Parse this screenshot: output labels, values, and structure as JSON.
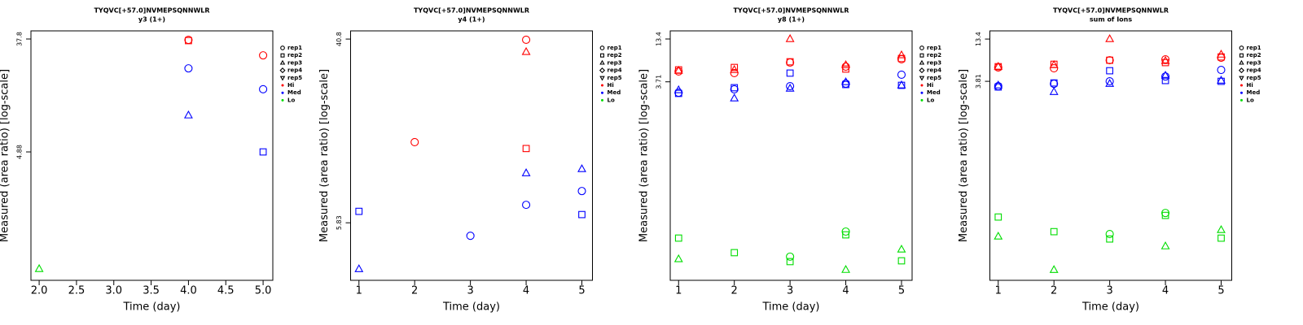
{
  "chart_data": [
    {
      "type": "scatter",
      "title": "TYQVC[+57.0]NVMEPSQNNWLR",
      "subtitle": "y3 (1+)",
      "x_label": "Time (day)",
      "y_label": "Measured (area ratio) [log-scale]",
      "log_y": true,
      "xlim": [
        1.89,
        5.13
      ],
      "ylim": [
        0.476,
        43.8
      ],
      "xticks": [
        {
          "value": 2,
          "label": "2.0"
        },
        2.5,
        {
          "value": 3,
          "label": "3.0"
        },
        3.5,
        {
          "value": 4,
          "label": "4.0"
        },
        4.5,
        {
          "value": 5,
          "label": "5.0"
        }
      ],
      "yticks": [
        37.8,
        4.88
      ],
      "rep_names": [
        "rep1",
        "rep2",
        "rep3",
        "rep4",
        "rep5"
      ],
      "rep_shapes": [
        "circle",
        "square",
        "triangle",
        "diamond",
        "triangle-down"
      ],
      "series": [
        {
          "name": "Hi",
          "color": "#ff0000",
          "reps": [
            {
              "x": [
                4,
                5
              ],
              "values": [
                37.2,
                28.1
              ]
            },
            {
              "x": [
                4
              ],
              "values": [
                36.7
              ]
            },
            {
              "x": [],
              "values": []
            }
          ]
        },
        {
          "name": "Med",
          "color": "#0000ff",
          "reps": [
            {
              "x": [
                4,
                5
              ],
              "values": [
                22.2,
                15.2
              ]
            },
            {
              "x": [
                5
              ],
              "values": [
                4.88
              ]
            },
            {
              "x": [
                4
              ],
              "values": [
                9.47
              ]
            }
          ]
        },
        {
          "name": "Lo",
          "color": "#00dd00",
          "reps": [
            {
              "x": [],
              "values": []
            },
            {
              "x": [],
              "values": []
            },
            {
              "x": [
                2
              ],
              "values": [
                0.585
              ]
            }
          ]
        }
      ]
    },
    {
      "type": "scatter",
      "title": "TYQVC[+57.0]NVMEPSQNNWLR",
      "subtitle": "y4 (1+)",
      "x_label": "Time (day)",
      "y_label": "Measured (area ratio) [log-scale]",
      "log_y": true,
      "xlim": [
        0.85,
        5.19
      ],
      "ylim": [
        3.17,
        44.5
      ],
      "xticks": [
        1,
        2,
        3,
        4,
        5
      ],
      "yticks": [
        40.8,
        5.83
      ],
      "rep_names": [
        "rep1",
        "rep2",
        "rep3",
        "rep4",
        "rep5"
      ],
      "rep_shapes": [
        "circle",
        "square",
        "triangle",
        "diamond",
        "triangle-down"
      ],
      "series": [
        {
          "name": "Hi",
          "color": "#ff0000",
          "reps": [
            {
              "x": [
                2,
                4
              ],
              "values": [
                13.7,
                40.5
              ]
            },
            {
              "x": [
                4
              ],
              "values": [
                12.8
              ]
            },
            {
              "x": [
                4
              ],
              "values": [
                35.6
              ]
            }
          ]
        },
        {
          "name": "Med",
          "color": "#0000ff",
          "reps": [
            {
              "x": [
                3,
                4,
                5
              ],
              "values": [
                5.08,
                7.05,
                8.16
              ]
            },
            {
              "x": [
                1,
                5
              ],
              "values": [
                6.58,
                6.36
              ]
            },
            {
              "x": [
                1,
                4,
                5
              ],
              "values": [
                3.57,
                9.86,
                10.3
              ]
            }
          ]
        },
        {
          "name": "Lo",
          "color": "#00dd00",
          "reps": [
            {
              "x": [],
              "values": []
            },
            {
              "x": [],
              "values": []
            },
            {
              "x": [],
              "values": []
            }
          ]
        }
      ]
    },
    {
      "type": "scatter",
      "title": "TYQVC[+57.0]NVMEPSQNNWLR",
      "subtitle": "y8 (1+)",
      "x_label": "Time (day)",
      "y_label": "Measured (area ratio) [log-scale]",
      "log_y": true,
      "xlim": [
        0.85,
        5.19
      ],
      "ylim": [
        0.00964,
        17.1
      ],
      "xticks": [
        1,
        2,
        3,
        4,
        5
      ],
      "yticks": [
        13.4,
        3.71
      ],
      "rep_names": [
        "rep1",
        "rep2",
        "rep3",
        "rep4",
        "rep5"
      ],
      "rep_shapes": [
        "circle",
        "square",
        "triangle",
        "diamond",
        "triangle-down"
      ],
      "series": [
        {
          "name": "Hi",
          "color": "#ff0000",
          "reps": [
            {
              "x": [
                1,
                2,
                3,
                4,
                5
              ],
              "values": [
                5.06,
                4.82,
                6.61,
                5.85,
                7.29
              ]
            },
            {
              "x": [
                1,
                2,
                3,
                4,
                5
              ],
              "values": [
                5.31,
                5.71,
                6.77,
                5.44,
                7.47
              ]
            },
            {
              "x": [
                1,
                2,
                3,
                4,
                5
              ],
              "values": [
                5.18,
                5.31,
                13.4,
                6.14,
                8.24
              ]
            }
          ]
        },
        {
          "name": "Med",
          "color": "#0000ff",
          "reps": [
            {
              "x": [
                1,
                2,
                3,
                4,
                5
              ],
              "values": [
                2.68,
                2.96,
                3.26,
                3.51,
                4.59
              ]
            },
            {
              "x": [
                1,
                2,
                3,
                4,
                5
              ],
              "values": [
                2.62,
                3.11,
                4.82,
                3.42,
                3.34
              ]
            },
            {
              "x": [
                1,
                2,
                3,
                4,
                5
              ],
              "values": [
                2.89,
                2.26,
                3.03,
                3.68,
                3.34
              ]
            }
          ]
        },
        {
          "name": "Lo",
          "color": "#00dd00",
          "reps": [
            {
              "x": [
                3,
                4
              ],
              "values": [
                0.0196,
                0.0416
              ]
            },
            {
              "x": [
                1,
                2,
                3,
                4,
                5
              ],
              "values": [
                0.0342,
                0.0221,
                0.0169,
                0.0377,
                0.0173
              ]
            },
            {
              "x": [
                1,
                4,
                5
              ],
              "values": [
                0.0182,
                0.0132,
                0.0243
              ]
            }
          ]
        }
      ]
    },
    {
      "type": "scatter",
      "title": "TYQVC[+57.0]NVMEPSQNNWLR",
      "subtitle": "sum of Ions",
      "x_label": "Time (day)",
      "y_label": "Measured (area ratio) [log-scale]",
      "log_y": true,
      "xlim": [
        0.85,
        5.19
      ],
      "ylim": [
        0.0102,
        17.1
      ],
      "xticks": [
        1,
        2,
        3,
        4,
        5
      ],
      "yticks": [
        13.4,
        3.81
      ],
      "rep_names": [
        "rep1",
        "rep2",
        "rep3",
        "rep4",
        "rep5"
      ],
      "rep_shapes": [
        "circle",
        "square",
        "triangle",
        "diamond",
        "triangle-down"
      ],
      "series": [
        {
          "name": "Hi",
          "color": "#ff0000",
          "reps": [
            {
              "x": [
                1,
                2,
                3,
                4,
                5
              ],
              "values": [
                5.75,
                5.61,
                7.14,
                7.32,
                7.68
              ]
            },
            {
              "x": [
                1,
                2,
                3,
                4,
                5
              ],
              "values": [
                5.89,
                6.33,
                7.14,
                6.65,
                7.87
              ]
            },
            {
              "x": [
                1,
                2,
                3,
                4,
                5
              ],
              "values": [
                5.89,
                6.18,
                13.4,
                6.98,
                8.46
              ]
            }
          ]
        },
        {
          "name": "Med",
          "color": "#0000ff",
          "reps": [
            {
              "x": [
                1,
                2,
                3,
                4,
                5
              ],
              "values": [
                3.3,
                3.54,
                3.81,
                4.4,
                5.35
              ]
            },
            {
              "x": [
                1,
                2,
                3,
                4,
                5
              ],
              "values": [
                3.22,
                3.63,
                5.22,
                3.9,
                3.81
              ]
            },
            {
              "x": [
                1,
                2,
                3,
                4,
                5
              ],
              "values": [
                3.38,
                2.78,
                3.54,
                4.51,
                3.9
              ]
            }
          ]
        },
        {
          "name": "Lo",
          "color": "#00dd00",
          "reps": [
            {
              "x": [
                3,
                4
              ],
              "values": [
                0.0404,
                0.0757
              ]
            },
            {
              "x": [
                1,
                2,
                3,
                4,
                5
              ],
              "values": [
                0.0671,
                0.0434,
                0.0349,
                0.0704,
                0.0358
              ]
            },
            {
              "x": [
                1,
                2,
                4,
                5
              ],
              "values": [
                0.0376,
                0.0139,
                0.0281,
                0.0456
              ]
            }
          ]
        }
      ]
    }
  ]
}
